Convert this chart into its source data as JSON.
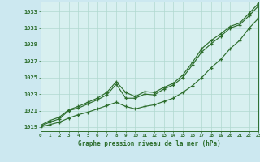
{
  "title": "Graphe pression niveau de la mer (hPa)",
  "bg_color": "#cce8f0",
  "plot_bg_color": "#d8f0f0",
  "line_color": "#2d6e2d",
  "grid_color": "#b0d8d0",
  "ylabel_values": [
    1019,
    1021,
    1023,
    1025,
    1027,
    1029,
    1031,
    1033
  ],
  "xlim": [
    0,
    23
  ],
  "ylim": [
    1018.5,
    1034.2
  ],
  "line1_x": [
    0,
    1,
    2,
    3,
    4,
    5,
    6,
    7,
    8,
    9,
    10,
    11,
    12,
    13,
    14,
    15,
    16,
    17,
    18,
    19,
    20,
    21,
    22,
    23
  ],
  "line1_y": [
    1019.2,
    1019.8,
    1020.2,
    1021.1,
    1021.5,
    1022.0,
    1022.5,
    1023.2,
    1024.5,
    1023.2,
    1022.7,
    1023.3,
    1023.2,
    1023.8,
    1024.3,
    1025.3,
    1026.8,
    1028.5,
    1029.5,
    1030.3,
    1031.2,
    1031.6,
    1032.8,
    1034.0
  ],
  "line2_x": [
    0,
    1,
    2,
    3,
    4,
    5,
    6,
    7,
    8,
    9,
    10,
    11,
    12,
    13,
    14,
    15,
    16,
    17,
    18,
    19,
    20,
    21,
    22,
    23
  ],
  "line2_y": [
    1019.1,
    1019.6,
    1020.0,
    1021.0,
    1021.3,
    1021.8,
    1022.3,
    1022.9,
    1024.2,
    1022.5,
    1022.5,
    1023.0,
    1022.9,
    1023.6,
    1024.1,
    1025.0,
    1026.5,
    1028.1,
    1029.1,
    1030.0,
    1031.0,
    1031.4,
    1032.5,
    1033.7
  ],
  "line3_x": [
    0,
    1,
    2,
    3,
    4,
    5,
    6,
    7,
    8,
    9,
    10,
    11,
    12,
    13,
    14,
    15,
    16,
    17,
    18,
    19,
    20,
    21,
    22,
    23
  ],
  "line3_y": [
    1019.0,
    1019.3,
    1019.6,
    1020.1,
    1020.5,
    1020.8,
    1021.2,
    1021.6,
    1022.0,
    1021.5,
    1021.2,
    1021.5,
    1021.7,
    1022.1,
    1022.5,
    1023.2,
    1024.0,
    1025.0,
    1026.2,
    1027.2,
    1028.5,
    1029.5,
    1031.0,
    1032.2
  ]
}
